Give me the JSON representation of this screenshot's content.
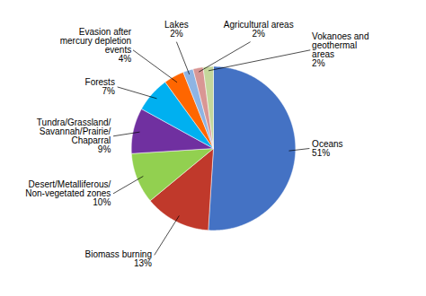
{
  "chart_data": {
    "type": "pie",
    "categories": [
      "Oceans",
      "Biomass burning",
      "Desert/Metalliferous/\nNon-vegetated zones",
      "Tundra/Grassland/\nSavannah/Prairie/\nChaparral",
      "Forests",
      "Evasion after\nmercury depletion\nevents",
      "Lakes",
      "Agricultural areas",
      "Vokanoes and\ngeothermal\nareas"
    ],
    "values": [
      51,
      13,
      10,
      9,
      7,
      4,
      2,
      2,
      2
    ],
    "value_labels": [
      "51%",
      "13%",
      "10%",
      "9%",
      "7%",
      "4%",
      "2%",
      "2%",
      "2%"
    ],
    "colors": [
      "#4472C4",
      "#C0392B",
      "#92D050",
      "#7030A0",
      "#00B0F0",
      "#FF6600",
      "#8EB4E3",
      "#D99694",
      "#C4D79B"
    ],
    "data_labels": true
  }
}
